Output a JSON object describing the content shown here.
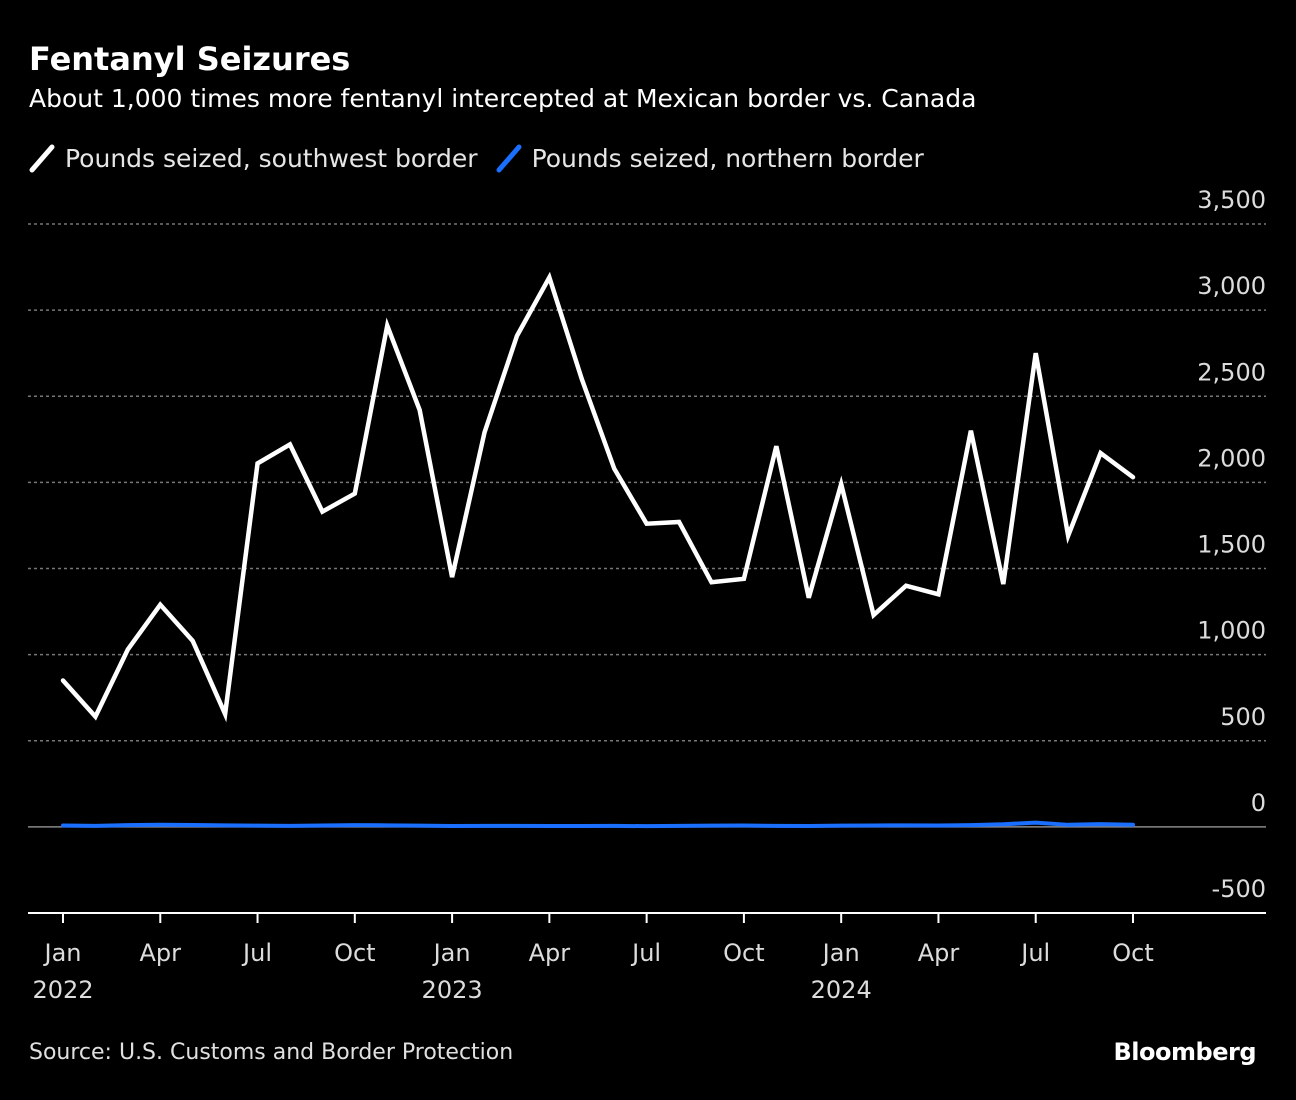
{
  "title": "Fentanyl Seizures",
  "subtitle": "About 1,000 times more fentanyl intercepted at Mexican border vs. Canada",
  "source": "Source: U.S. Customs and Border Protection",
  "brand": "Bloomberg",
  "colors": {
    "background": "#000000",
    "southwest": "#ffffff",
    "northern": "#1a6fff",
    "grid": "#777777"
  },
  "chart_data": {
    "type": "line",
    "title": "Fentanyl Seizures",
    "xlabel": "",
    "ylabel": "",
    "ylim": [
      -500,
      3500
    ],
    "yticks": [
      {
        "value": 3500,
        "label": "3,500"
      },
      {
        "value": 3000,
        "label": "3,000"
      },
      {
        "value": 2500,
        "label": "2,500"
      },
      {
        "value": 2000,
        "label": "2,000"
      },
      {
        "value": 1500,
        "label": "1,500"
      },
      {
        "value": 1000,
        "label": "1,000"
      },
      {
        "value": 500,
        "label": "500"
      },
      {
        "value": 0,
        "label": "0"
      },
      {
        "value": -500,
        "label": "-500"
      }
    ],
    "xticks": [
      {
        "month": 0,
        "label": "Jan",
        "year": "2022"
      },
      {
        "month": 3,
        "label": "Apr",
        "year": ""
      },
      {
        "month": 6,
        "label": "Jul",
        "year": ""
      },
      {
        "month": 9,
        "label": "Oct",
        "year": ""
      },
      {
        "month": 12,
        "label": "Jan",
        "year": "2023"
      },
      {
        "month": 15,
        "label": "Apr",
        "year": ""
      },
      {
        "month": 18,
        "label": "Jul",
        "year": ""
      },
      {
        "month": 21,
        "label": "Oct",
        "year": ""
      },
      {
        "month": 24,
        "label": "Jan",
        "year": "2024"
      },
      {
        "month": 27,
        "label": "Apr",
        "year": ""
      },
      {
        "month": 30,
        "label": "Jul",
        "year": ""
      },
      {
        "month": 33,
        "label": "Oct",
        "year": ""
      }
    ],
    "x": [
      "2022-01",
      "2022-02",
      "2022-03",
      "2022-04",
      "2022-05",
      "2022-06",
      "2022-07",
      "2022-08",
      "2022-09",
      "2022-10",
      "2022-11",
      "2022-12",
      "2023-01",
      "2023-02",
      "2023-03",
      "2023-04",
      "2023-05",
      "2023-06",
      "2023-07",
      "2023-08",
      "2023-09",
      "2023-10",
      "2023-11",
      "2023-12",
      "2024-01",
      "2024-02",
      "2024-03",
      "2024-04",
      "2024-05",
      "2024-06",
      "2024-07",
      "2024-08",
      "2024-09",
      "2024-10"
    ],
    "series": [
      {
        "name": "Pounds seized, southwest border",
        "values": [
          850,
          640,
          1030,
          1290,
          1080,
          655,
          2110,
          2220,
          1830,
          1935,
          2910,
          2420,
          1450,
          2290,
          2850,
          3190,
          2600,
          2080,
          1760,
          1770,
          1420,
          1440,
          2210,
          1330,
          1990,
          1230,
          1400,
          1350,
          2300,
          1410,
          2750,
          1690,
          2170,
          2030
        ]
      },
      {
        "name": "Pounds seized, northern border",
        "values": [
          8,
          6,
          10,
          12,
          11,
          9,
          7,
          6,
          8,
          10,
          9,
          7,
          5,
          6,
          6,
          5,
          5,
          6,
          4,
          6,
          7,
          8,
          6,
          5,
          7,
          8,
          9,
          8,
          10,
          15,
          25,
          12,
          16,
          12
        ]
      }
    ],
    "grid": true,
    "legend_position": "top-left"
  }
}
